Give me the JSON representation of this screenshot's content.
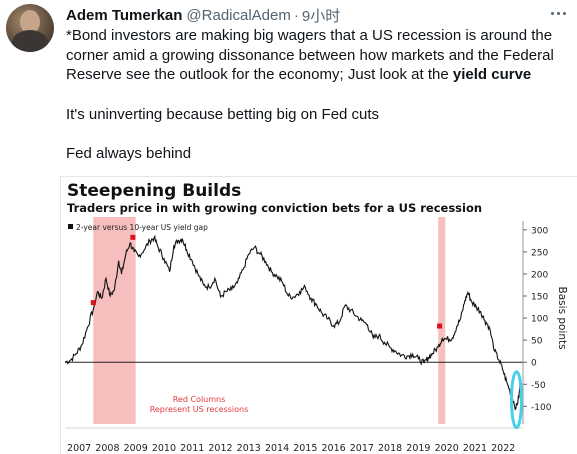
{
  "tweet": {
    "author_name": "Adem Tumerkan",
    "handle": "@RadicalAdem",
    "separator": "·",
    "time": "9小时",
    "line1_pre": "*Bond investors are making big wagers that a US recession is around the corner amid a growing dissonance between how markets and the Federal Reserve see the outlook for the economy; Just look at the ",
    "line1_bold": "yield curve",
    "line2": "It's uninverting because betting big on Fed cuts",
    "line3": "Fed always behind"
  },
  "icons": {
    "avatar": "profile-photo",
    "more": "more-icon"
  },
  "chart_data": {
    "type": "line",
    "title": "Steepening Builds",
    "subtitle": "Traders price in with growing conviction bets for a US recession",
    "legend": "2-year versus 10-year US yield gap",
    "ylabel": "Basis points",
    "ylim": [
      -140,
      320
    ],
    "yticks": [
      "300",
      "250",
      "200",
      "150",
      "100",
      "50",
      "0",
      "-50",
      "-100"
    ],
    "xticks": [
      "2007",
      "2008",
      "2009",
      "2010",
      "2011",
      "2012",
      "2013",
      "2014",
      "2015",
      "2016",
      "2017",
      "2018",
      "2019",
      "2020",
      "2021",
      "2022"
    ],
    "xlim": [
      2007.0,
      2023.2
    ],
    "recessions": [
      [
        2008.0,
        2009.5
      ],
      [
        2020.2,
        2020.45
      ]
    ],
    "annotation": [
      "Red Columns",
      "Represent US recessions"
    ],
    "colors": {
      "line": "#111111",
      "recession": "#f6b3b3",
      "annotation": "#e0393e",
      "highlight": "#47d0e6",
      "marker": "#d9141c"
    },
    "series": [
      {
        "values": [
          [
            2007.0,
            0
          ],
          [
            2007.2,
            5
          ],
          [
            2007.4,
            20
          ],
          [
            2007.6,
            40
          ],
          [
            2007.8,
            80
          ],
          [
            2008.0,
            120
          ],
          [
            2008.15,
            160
          ],
          [
            2008.3,
            145
          ],
          [
            2008.45,
            190
          ],
          [
            2008.6,
            150
          ],
          [
            2008.75,
            165
          ],
          [
            2008.9,
            230
          ],
          [
            2009.0,
            200
          ],
          [
            2009.15,
            245
          ],
          [
            2009.3,
            270
          ],
          [
            2009.45,
            250
          ],
          [
            2009.6,
            240
          ],
          [
            2009.8,
            255
          ],
          [
            2010.0,
            275
          ],
          [
            2010.15,
            282
          ],
          [
            2010.3,
            260
          ],
          [
            2010.5,
            235
          ],
          [
            2010.7,
            205
          ],
          [
            2010.85,
            265
          ],
          [
            2011.0,
            275
          ],
          [
            2011.15,
            280
          ],
          [
            2011.3,
            255
          ],
          [
            2011.5,
            230
          ],
          [
            2011.7,
            200
          ],
          [
            2011.9,
            175
          ],
          [
            2012.1,
            170
          ],
          [
            2012.3,
            190
          ],
          [
            2012.5,
            148
          ],
          [
            2012.7,
            160
          ],
          [
            2012.9,
            165
          ],
          [
            2013.1,
            180
          ],
          [
            2013.3,
            210
          ],
          [
            2013.5,
            245
          ],
          [
            2013.7,
            260
          ],
          [
            2013.9,
            245
          ],
          [
            2014.1,
            228
          ],
          [
            2014.3,
            205
          ],
          [
            2014.5,
            195
          ],
          [
            2014.7,
            180
          ],
          [
            2014.9,
            150
          ],
          [
            2015.1,
            148
          ],
          [
            2015.3,
            160
          ],
          [
            2015.5,
            170
          ],
          [
            2015.7,
            145
          ],
          [
            2015.9,
            130
          ],
          [
            2016.1,
            110
          ],
          [
            2016.3,
            98
          ],
          [
            2016.5,
            83
          ],
          [
            2016.7,
            90
          ],
          [
            2016.9,
            128
          ],
          [
            2017.1,
            118
          ],
          [
            2017.3,
            105
          ],
          [
            2017.5,
            94
          ],
          [
            2017.7,
            85
          ],
          [
            2017.9,
            55
          ],
          [
            2018.1,
            60
          ],
          [
            2018.3,
            45
          ],
          [
            2018.5,
            33
          ],
          [
            2018.7,
            25
          ],
          [
            2018.9,
            16
          ],
          [
            2019.1,
            14
          ],
          [
            2019.3,
            18
          ],
          [
            2019.5,
            8
          ],
          [
            2019.7,
            -2
          ],
          [
            2019.85,
            10
          ],
          [
            2020.0,
            20
          ],
          [
            2020.2,
            35
          ],
          [
            2020.35,
            55
          ],
          [
            2020.5,
            52
          ],
          [
            2020.7,
            55
          ],
          [
            2020.85,
            80
          ],
          [
            2021.0,
            100
          ],
          [
            2021.15,
            140
          ],
          [
            2021.25,
            158
          ],
          [
            2021.4,
            135
          ],
          [
            2021.55,
            125
          ],
          [
            2021.7,
            115
          ],
          [
            2021.85,
            95
          ],
          [
            2022.0,
            80
          ],
          [
            2022.2,
            25
          ],
          [
            2022.35,
            5
          ],
          [
            2022.5,
            -20
          ],
          [
            2022.65,
            -50
          ],
          [
            2022.8,
            -75
          ],
          [
            2022.95,
            -105
          ],
          [
            2023.05,
            -80
          ],
          [
            2023.1,
            -50
          ]
        ]
      }
    ]
  }
}
